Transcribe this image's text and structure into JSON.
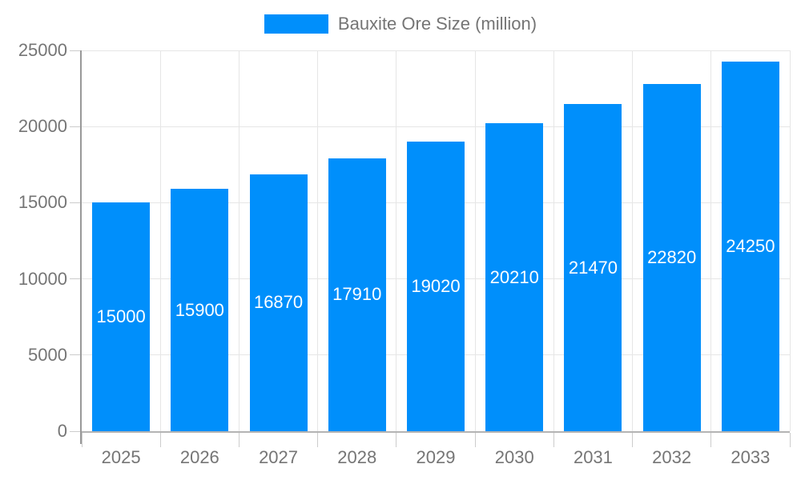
{
  "legend": {
    "label": "Bauxite Ore Size (million)"
  },
  "chart_data": {
    "type": "bar",
    "categories": [
      "2025",
      "2026",
      "2027",
      "2028",
      "2029",
      "2030",
      "2031",
      "2032",
      "2033"
    ],
    "series": [
      {
        "name": "Bauxite Ore Size (million)",
        "values": [
          15000,
          15900,
          16870,
          17910,
          19020,
          20210,
          21470,
          22820,
          24250
        ]
      }
    ],
    "xlabel": "",
    "ylabel": "",
    "ylim": [
      0,
      25000
    ],
    "yticks": [
      0,
      5000,
      10000,
      15000,
      20000,
      25000
    ],
    "grid": true,
    "legend_position": "top-center",
    "value_labels": "inside-center"
  },
  "colors": {
    "bar": "#008FFB",
    "axis_label": "#757575",
    "value_label": "#ffffff",
    "gridline": "#e6e6e6",
    "tick": "#cccccc",
    "y_axis_line": "#999999",
    "x_axis_line": "#b3b3b3",
    "background": "#ffffff"
  }
}
